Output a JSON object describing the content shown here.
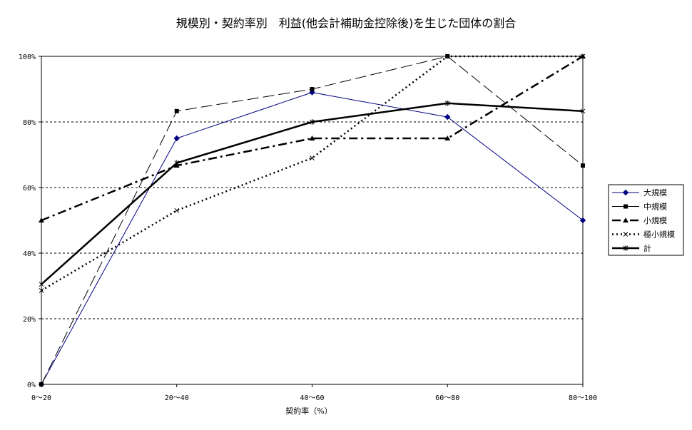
{
  "chart_data": {
    "type": "line",
    "title": "規模別・契約率別　利益(他会計補助金控除後)を生じた団体の割合",
    "xlabel": "契約率（%）",
    "ylabel": "",
    "categories": [
      "0～20",
      "20～40",
      "40～60",
      "60～80",
      "80～100"
    ],
    "y_ticks": [
      "0%",
      "20%",
      "40%",
      "60%",
      "80%",
      "100%"
    ],
    "ylim": [
      0,
      100
    ],
    "grid": true,
    "legend_position": "right",
    "series": [
      {
        "name": "大規模",
        "values": [
          0,
          75,
          89,
          81.5,
          50
        ],
        "color": "#000080",
        "dash": "",
        "width": 1,
        "marker": "diamond"
      },
      {
        "name": "中規模",
        "values": [
          0,
          83.3,
          90,
          100,
          66.7
        ],
        "color": "#000000",
        "dash": "16,6",
        "width": 1,
        "marker": "square"
      },
      {
        "name": "小規模",
        "values": [
          50,
          66.7,
          75,
          75,
          100
        ],
        "color": "#000000",
        "dash": "12,5,3,5",
        "width": 2.5,
        "marker": "triangle"
      },
      {
        "name": "極小規模",
        "values": [
          28.6,
          53,
          69,
          100,
          100
        ],
        "color": "#000000",
        "dash": "2,4",
        "width": 2.5,
        "marker": "x"
      },
      {
        "name": "計",
        "values": [
          30.5,
          67.5,
          80,
          85.7,
          83.3
        ],
        "color": "#000000",
        "dash": "",
        "width": 2.5,
        "marker": "star"
      }
    ]
  }
}
